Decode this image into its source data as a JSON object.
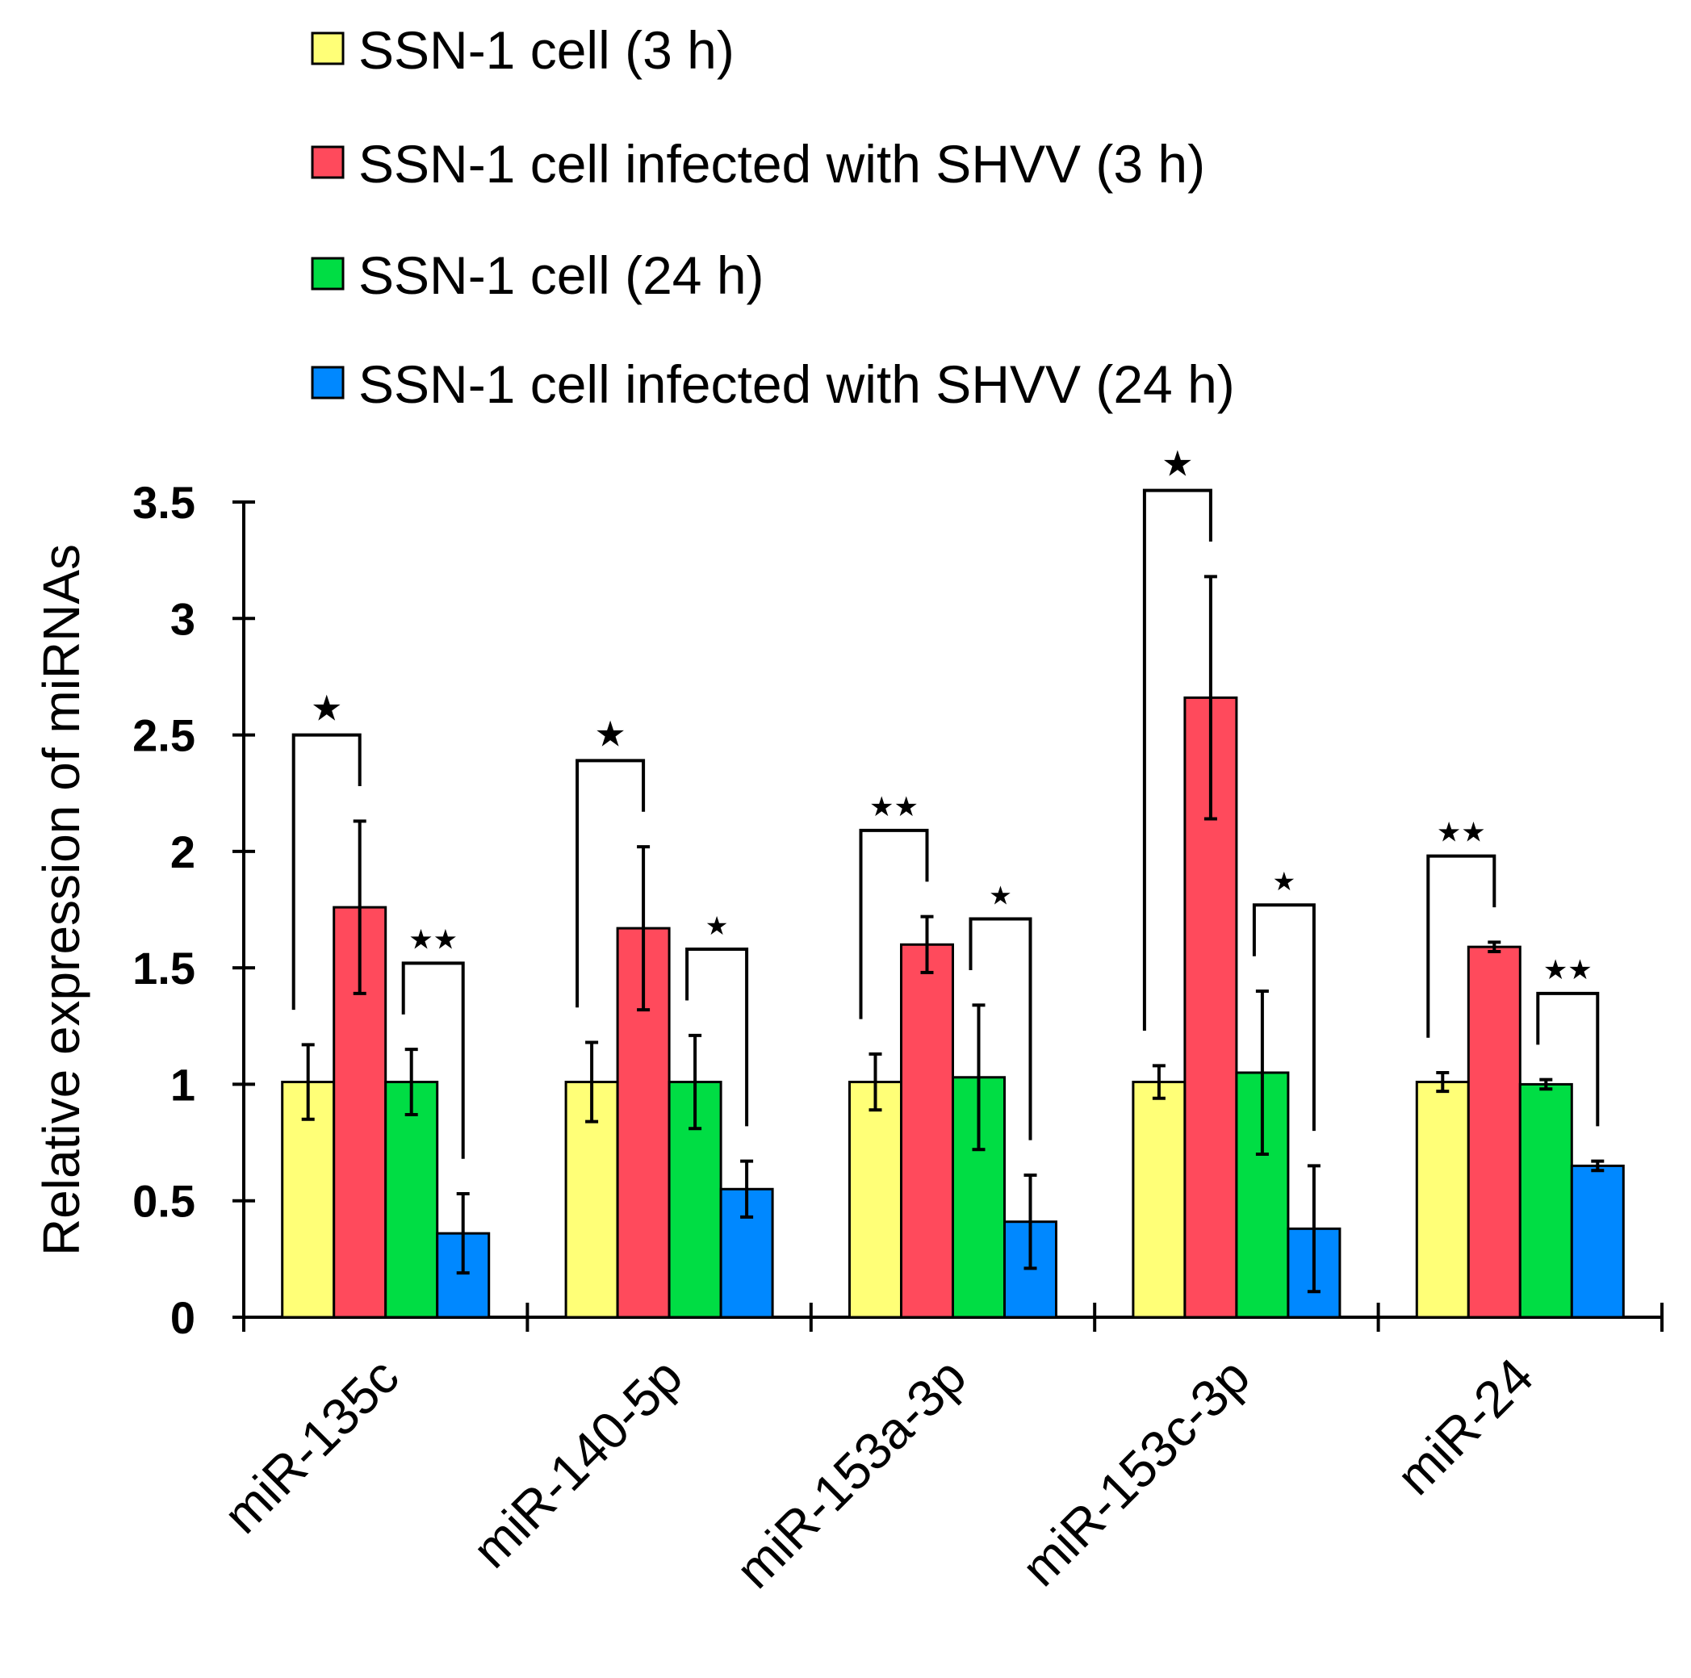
{
  "chart_data": {
    "type": "bar",
    "title": "",
    "xlabel": "",
    "ylabel": "Relative expression of miRNAs",
    "ylim": [
      0,
      3.5
    ],
    "yticks": [
      "0",
      "0.5",
      "1",
      "1.5",
      "2",
      "2.5",
      "3",
      "3.5"
    ],
    "grid": false,
    "legend_position": "top",
    "categories": [
      "miR-135c",
      "miR-140-5p",
      "miR-153a-3p",
      "miR-153c-3p",
      "miR-24"
    ],
    "series": [
      {
        "name": "SSN-1 cell (3 h)",
        "color": "#FFFF77",
        "values": [
          1.01,
          1.01,
          1.01,
          1.01,
          1.01
        ],
        "errors": [
          0.16,
          0.17,
          0.12,
          0.07,
          0.04
        ]
      },
      {
        "name": "SSN-1 cell infected with SHVV (3 h)",
        "color": "#FF4A5C",
        "values": [
          1.76,
          1.67,
          1.6,
          2.66,
          1.59
        ],
        "errors": [
          0.37,
          0.35,
          0.12,
          0.52,
          0.02
        ]
      },
      {
        "name": "SSN-1 cell (24 h)",
        "color": "#00DD44",
        "values": [
          1.01,
          1.01,
          1.03,
          1.05,
          1.0
        ],
        "errors": [
          0.14,
          0.2,
          0.31,
          0.35,
          0.02
        ]
      },
      {
        "name": "SSN-1 cell infected with SHVV (24 h)",
        "color": "#0088FF",
        "values": [
          0.36,
          0.55,
          0.41,
          0.38,
          0.65
        ],
        "errors": [
          0.17,
          0.12,
          0.2,
          0.27,
          0.02
        ]
      }
    ],
    "significance": [
      {
        "category": 0,
        "pair": [
          0,
          1
        ],
        "stars": "★"
      },
      {
        "category": 0,
        "pair": [
          2,
          3
        ],
        "stars": "★★"
      },
      {
        "category": 1,
        "pair": [
          0,
          1
        ],
        "stars": "★"
      },
      {
        "category": 1,
        "pair": [
          2,
          3
        ],
        "stars": "★"
      },
      {
        "category": 2,
        "pair": [
          0,
          1
        ],
        "stars": "★★"
      },
      {
        "category": 2,
        "pair": [
          2,
          3
        ],
        "stars": "★"
      },
      {
        "category": 3,
        "pair": [
          0,
          1
        ],
        "stars": "★"
      },
      {
        "category": 3,
        "pair": [
          2,
          3
        ],
        "stars": "★"
      },
      {
        "category": 4,
        "pair": [
          0,
          1
        ],
        "stars": "★★"
      },
      {
        "category": 4,
        "pair": [
          2,
          3
        ],
        "stars": "★★"
      }
    ]
  }
}
